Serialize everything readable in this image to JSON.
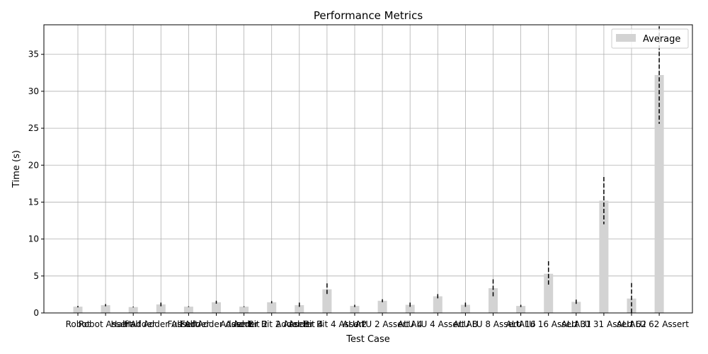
{
  "chart_data": {
    "type": "bar",
    "title": "Performance Metrics",
    "xlabel": "Test Case",
    "ylabel": "Time (s)",
    "ylim": [
      0,
      39
    ],
    "yticks": [
      0,
      5,
      10,
      15,
      20,
      25,
      30,
      35
    ],
    "grid": true,
    "legend_position": "top-right",
    "bar_color": "#d3d3d3",
    "categories": [
      "Robot",
      "Robot Assert",
      "Half Adder",
      "Half Adder Assert",
      "Full Adder",
      "Full Adder Assert",
      "Adder Bit 2",
      "Adder Bit 2 Assert",
      "Adder Bit 4",
      "Adder Bit 4 Assert",
      "ALU 2",
      "ALU 2 Assert",
      "ALU 4",
      "ALU 4 Assert",
      "ALU 8",
      "ALU 8 Assert",
      "ALU 16",
      "ALU 16 Assert",
      "ALU 31",
      "ALU 31 Assert",
      "ALU 62",
      "ALU 62 Assert"
    ],
    "series": [
      {
        "name": "Average",
        "values": [
          0.85,
          1.05,
          0.8,
          1.15,
          0.85,
          1.45,
          0.85,
          1.45,
          1.05,
          3.2,
          0.95,
          1.65,
          1.1,
          2.25,
          1.1,
          3.35,
          0.95,
          5.3,
          1.5,
          15.2,
          1.95,
          32.2
        ],
        "error": [
          0.1,
          0.15,
          0.05,
          0.25,
          0.05,
          0.2,
          0.05,
          0.15,
          0.35,
          0.8,
          0.15,
          0.2,
          0.3,
          0.3,
          0.3,
          1.2,
          0.15,
          1.7,
          0.3,
          3.2,
          2.1,
          6.6
        ]
      }
    ]
  }
}
